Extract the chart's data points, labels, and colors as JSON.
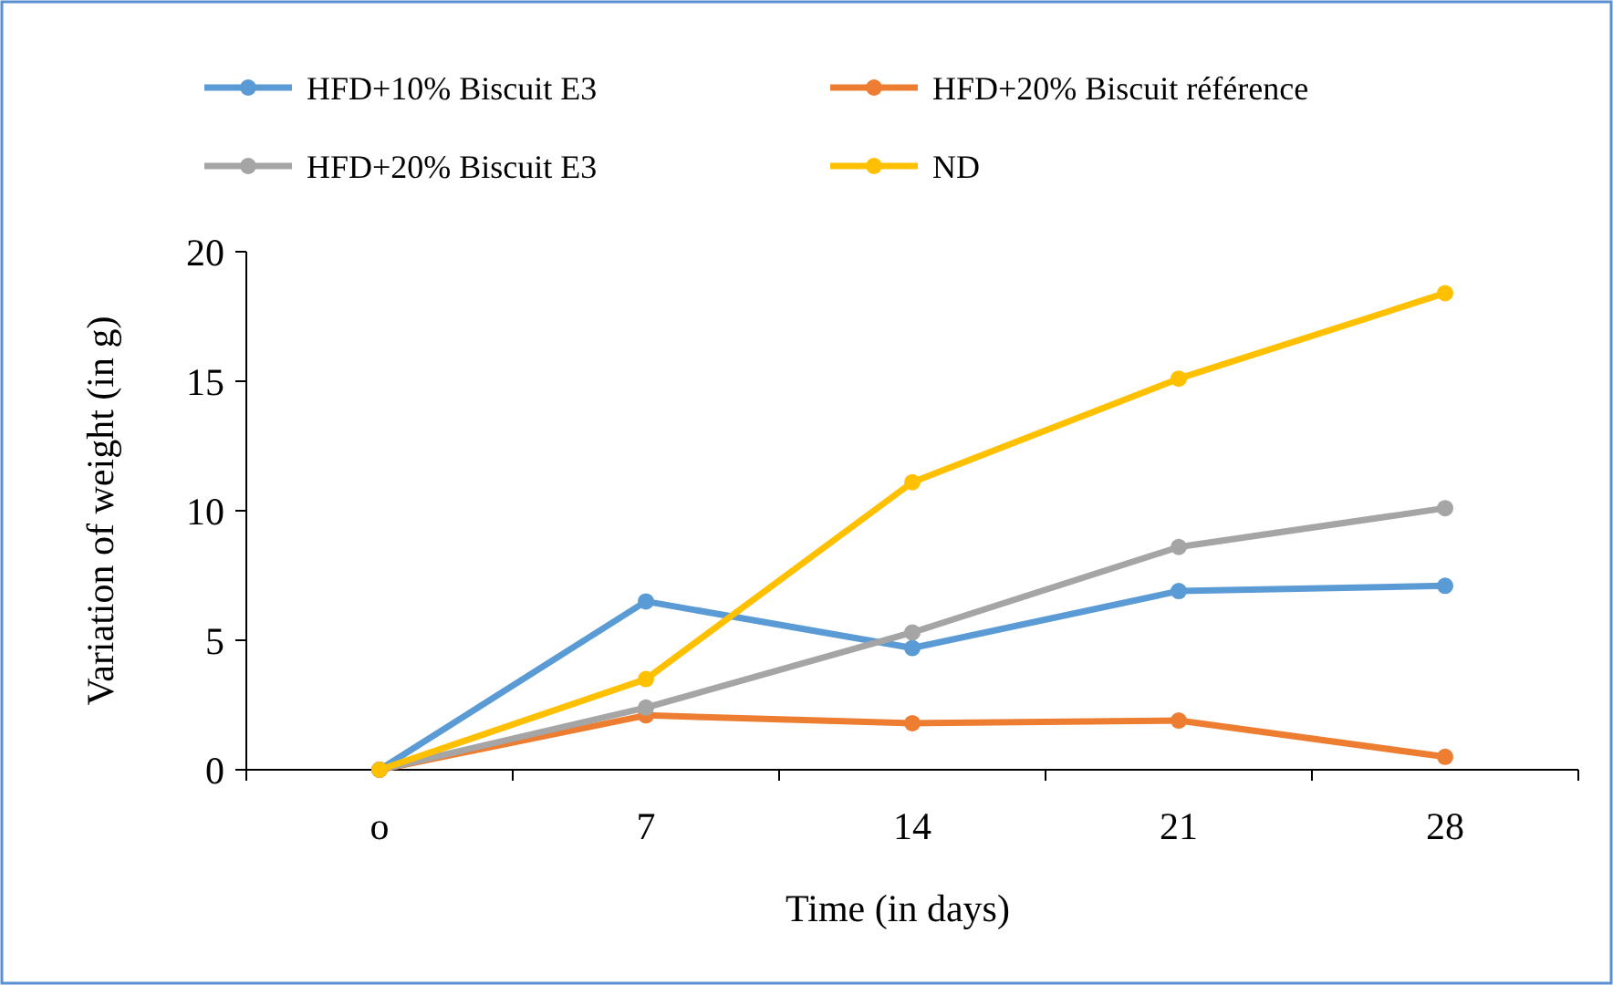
{
  "chart_data": {
    "type": "line",
    "xlabel": "Time  (in days)",
    "ylabel": "Variation  of weight  (in g)",
    "categories": [
      "o",
      "7",
      "14",
      "21",
      "28"
    ],
    "series": [
      {
        "name": "HFD+10% Biscuit E3",
        "color": "#5b9bd5",
        "values": [
          0,
          6.5,
          4.7,
          6.9,
          7.1
        ]
      },
      {
        "name": "HFD+20% Biscuit référence",
        "color": "#ed7d31",
        "values": [
          0,
          2.1,
          1.8,
          1.9,
          0.5
        ]
      },
      {
        "name": "HFD+20% Biscuit E3",
        "color": "#a5a5a5",
        "values": [
          0,
          2.4,
          5.3,
          8.6,
          10.1
        ]
      },
      {
        "name": "ND",
        "color": "#ffc000",
        "values": [
          0,
          3.5,
          11.1,
          15.1,
          18.4
        ]
      }
    ],
    "ylim": [
      0,
      20
    ],
    "yticks": [
      0,
      5,
      10,
      15,
      20
    ],
    "grid": false,
    "legend": "top",
    "marker": "circle",
    "line_style": "solid"
  }
}
